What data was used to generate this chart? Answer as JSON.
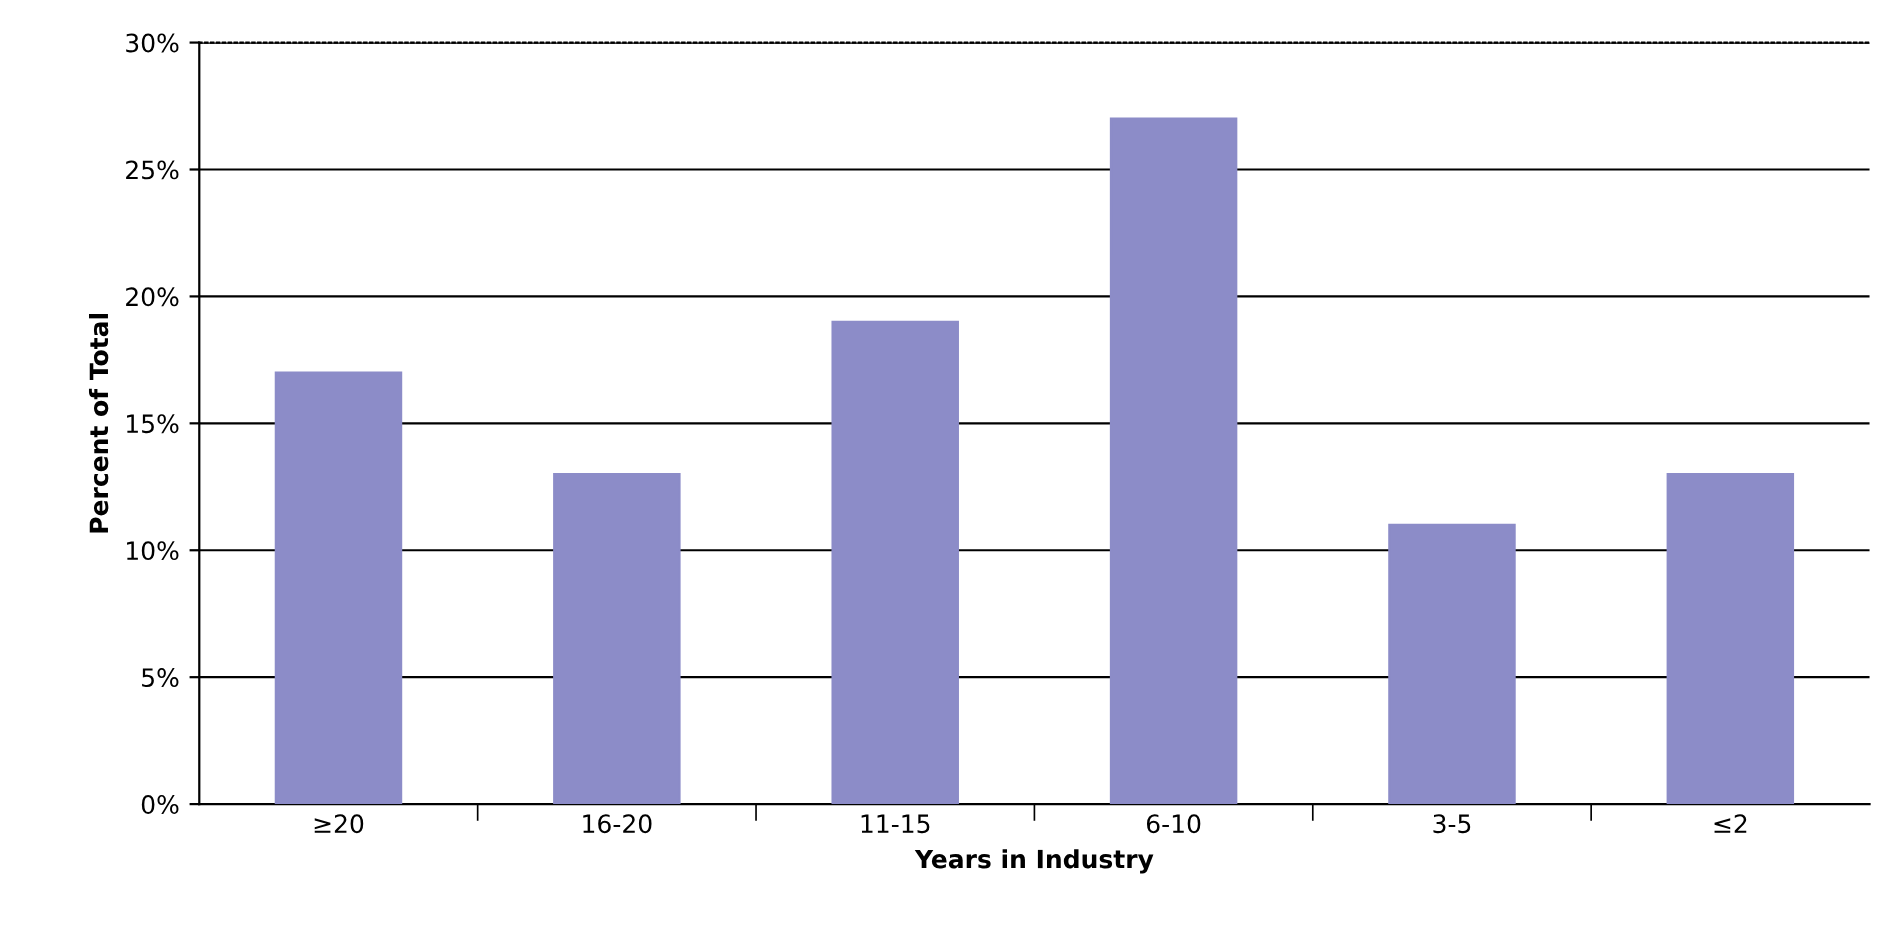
{
  "chart_data": {
    "type": "bar",
    "xlabel": "Years in Industry",
    "ylabel": "Percent of Total",
    "categories": [
      "≥20",
      "16-20",
      "11-15",
      "6-10",
      "3-5",
      "≤2"
    ],
    "values": [
      17,
      13,
      19,
      27,
      11,
      13
    ],
    "color": "#8c8cc8",
    "ylim": [
      0,
      30
    ],
    "yticks": [
      {
        "value": 0,
        "label": "0%"
      },
      {
        "value": 5,
        "label": "5%"
      },
      {
        "value": 10,
        "label": "10%"
      },
      {
        "value": 15,
        "label": "15%"
      },
      {
        "value": 20,
        "label": "20%"
      },
      {
        "value": 25,
        "label": "25%"
      },
      {
        "value": 30,
        "label": "30%"
      }
    ],
    "grid": "y",
    "legend": false
  }
}
